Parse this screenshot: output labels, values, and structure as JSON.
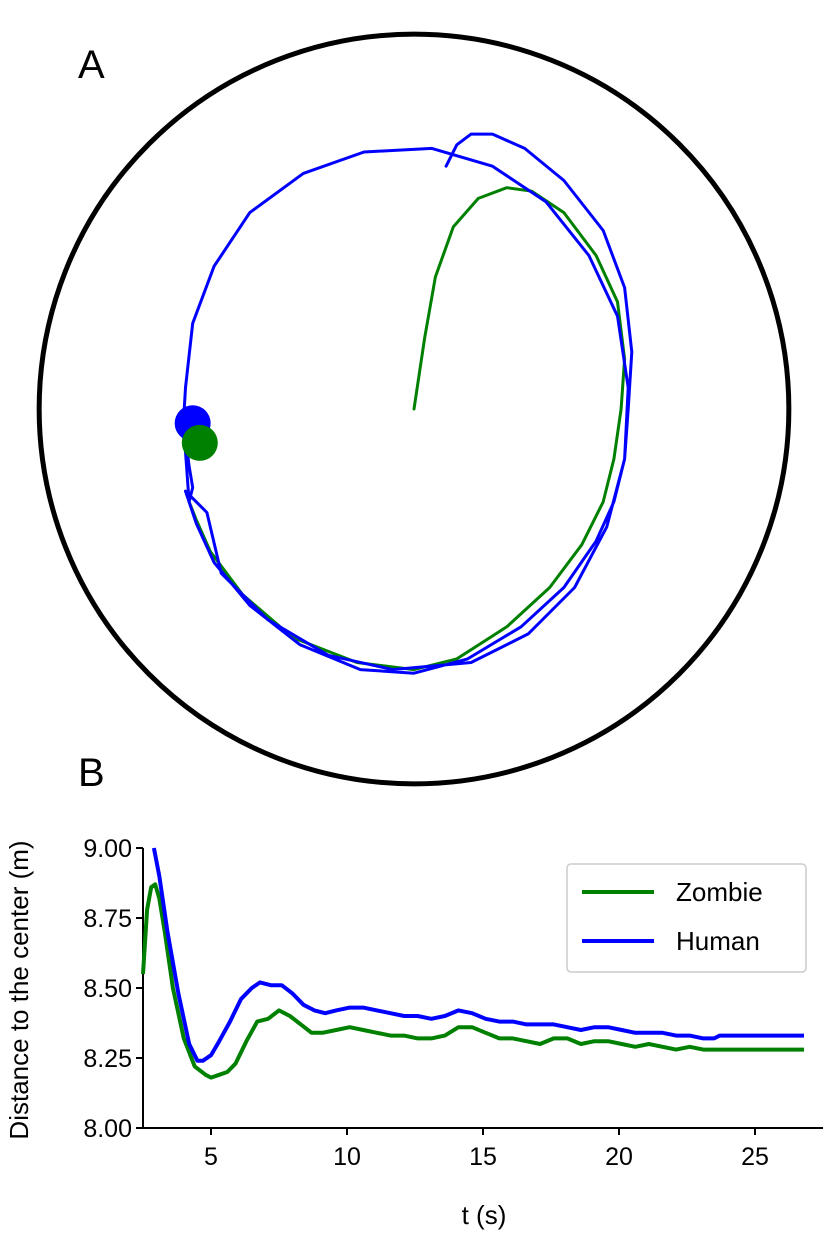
{
  "panels": {
    "a_label": "A",
    "b_label": "B"
  },
  "colors": {
    "zombie": "#008000",
    "human": "#0000ff",
    "arena": "#000000"
  },
  "chart_data": [
    {
      "type": "line",
      "panel": "A",
      "title": "",
      "note": "trajectories in a circular arena",
      "arena": {
        "shape": "circle",
        "center": [
          0,
          0
        ],
        "radius": 10.5
      },
      "series": [
        {
          "name": "Zombie",
          "points": [
            [
              0,
              0
            ],
            [
              0.3,
              2
            ],
            [
              0.6,
              3.7
            ],
            [
              1.1,
              5.1
            ],
            [
              1.8,
              5.9
            ],
            [
              2.6,
              6.2
            ],
            [
              3.3,
              6.1
            ],
            [
              4.2,
              5.5
            ],
            [
              5.1,
              4.3
            ],
            [
              5.7,
              3
            ],
            [
              5.9,
              1.4
            ],
            [
              5.8,
              0
            ],
            [
              5.6,
              -1.4
            ],
            [
              5.3,
              -2.6
            ],
            [
              4.7,
              -3.8
            ],
            [
              3.8,
              -5
            ],
            [
              2.6,
              -6.1
            ],
            [
              1.2,
              -7
            ],
            [
              0,
              -7.3
            ],
            [
              -1.6,
              -7.1
            ],
            [
              -3.4,
              -6.4
            ],
            [
              -4.8,
              -5.2
            ],
            [
              -5.7,
              -4
            ],
            [
              -6.1,
              -3.1
            ],
            [
              -6.3,
              -2.6
            ]
          ]
        },
        {
          "name": "Human",
          "points": [
            [
              0.9,
              6.8
            ],
            [
              1.2,
              7.4
            ],
            [
              1.6,
              7.7
            ],
            [
              2.2,
              7.7
            ],
            [
              3.1,
              7.3
            ],
            [
              4.2,
              6.4
            ],
            [
              5.3,
              5
            ],
            [
              5.9,
              3.4
            ],
            [
              6.1,
              1.6
            ],
            [
              6,
              0
            ],
            [
              5.9,
              -1.4
            ],
            [
              5.6,
              -2.6
            ],
            [
              5.1,
              -3.7
            ],
            [
              4.2,
              -5
            ],
            [
              3,
              -6.1
            ],
            [
              1.5,
              -7
            ],
            [
              0,
              -7.4
            ],
            [
              -1.5,
              -7.3
            ],
            [
              -3.2,
              -6.6
            ],
            [
              -4.6,
              -5.5
            ],
            [
              -5.6,
              -4.3
            ],
            [
              -6.1,
              -3.2
            ],
            [
              -6.4,
              -2.3
            ],
            [
              -5.8,
              -2.9
            ],
            [
              -5.4,
              -4.6
            ],
            [
              -4.1,
              -5.9
            ],
            [
              -2.4,
              -6.9
            ],
            [
              -0.6,
              -7.3
            ],
            [
              1.6,
              -7.1
            ],
            [
              3.2,
              -6.3
            ],
            [
              4.5,
              -5
            ],
            [
              5.4,
              -3.3
            ],
            [
              5.9,
              -1.4
            ],
            [
              6,
              0.6
            ],
            [
              5.7,
              2.6
            ],
            [
              4.9,
              4.3
            ],
            [
              3.7,
              5.8
            ],
            [
              2.2,
              6.8
            ],
            [
              0.5,
              7.3
            ],
            [
              -1.4,
              7.2
            ],
            [
              -3.1,
              6.6
            ],
            [
              -4.6,
              5.5
            ],
            [
              -5.6,
              4
            ],
            [
              -6.2,
              2.4
            ],
            [
              -6.4,
              0.6
            ],
            [
              -6.45,
              -0.25
            ],
            [
              -6.4,
              -0.8
            ],
            [
              -6.3,
              -1.6
            ],
            [
              -6.2,
              -2.2
            ],
            [
              -6.3,
              -2.6
            ],
            [
              -6.4,
              -1.2
            ],
            [
              -6.5,
              -0.4
            ]
          ]
        }
      ],
      "markers": [
        {
          "series": "Human",
          "position": [
            -6.2,
            -0.4
          ]
        },
        {
          "series": "Zombie",
          "position": [
            -6.0,
            -0.95
          ]
        }
      ]
    },
    {
      "type": "line",
      "panel": "B",
      "title": "",
      "xlabel": "t (s)",
      "ylabel": "Distance to the center (m)",
      "xlim": [
        2.5,
        27.5
      ],
      "ylim": [
        8.0,
        9.0
      ],
      "xticks": [
        5,
        10,
        15,
        20,
        25
      ],
      "xtick_labels": [
        "5",
        "10",
        "15",
        "20",
        "25"
      ],
      "yticks": [
        8.0,
        8.25,
        8.5,
        8.75,
        9.0
      ],
      "ytick_labels": [
        "8.00",
        "8.25",
        "8.50",
        "8.75",
        "9.00"
      ],
      "legend": {
        "position": "upper-right",
        "entries": [
          "Zombie",
          "Human"
        ]
      },
      "series": [
        {
          "name": "Zombie",
          "x": [
            2.5,
            2.65,
            2.8,
            2.95,
            3.1,
            3.3,
            3.6,
            4.0,
            4.4,
            4.8,
            5.0,
            5.3,
            5.6,
            5.9,
            6.3,
            6.7,
            7.1,
            7.5,
            7.9,
            8.3,
            8.7,
            9.1,
            9.6,
            10.1,
            10.6,
            11.1,
            11.6,
            12.1,
            12.6,
            13.1,
            13.6,
            14.1,
            14.6,
            15.1,
            15.6,
            16.1,
            16.6,
            17.1,
            17.6,
            18.1,
            18.6,
            19.1,
            19.6,
            20.1,
            20.6,
            21.1,
            21.6,
            22.1,
            22.6,
            23.1,
            23.6,
            24.5,
            25.5,
            26.5,
            26.8
          ],
          "y": [
            8.55,
            8.78,
            8.86,
            8.87,
            8.82,
            8.7,
            8.5,
            8.32,
            8.22,
            8.19,
            8.18,
            8.19,
            8.2,
            8.23,
            8.31,
            8.38,
            8.39,
            8.42,
            8.4,
            8.37,
            8.34,
            8.34,
            8.35,
            8.36,
            8.35,
            8.34,
            8.33,
            8.33,
            8.32,
            8.32,
            8.33,
            8.36,
            8.36,
            8.34,
            8.32,
            8.32,
            8.31,
            8.3,
            8.32,
            8.32,
            8.3,
            8.31,
            8.31,
            8.3,
            8.29,
            8.3,
            8.29,
            8.28,
            8.29,
            8.28,
            8.28,
            8.28,
            8.28,
            8.28,
            8.28
          ]
        },
        {
          "name": "Human",
          "x": [
            2.9,
            3.1,
            3.4,
            3.8,
            4.2,
            4.5,
            4.7,
            5.0,
            5.3,
            5.7,
            6.1,
            6.5,
            6.8,
            7.2,
            7.6,
            8.0,
            8.4,
            8.8,
            9.2,
            9.6,
            10.1,
            10.6,
            11.1,
            11.6,
            12.1,
            12.6,
            13.1,
            13.6,
            14.1,
            14.6,
            15.1,
            15.6,
            16.1,
            16.6,
            17.1,
            17.6,
            18.1,
            18.6,
            19.1,
            19.6,
            20.1,
            20.6,
            21.1,
            21.6,
            22.1,
            22.6,
            23.1,
            23.5,
            23.7,
            24.5,
            25.5,
            26.5,
            26.8
          ],
          "y": [
            9.0,
            8.9,
            8.7,
            8.48,
            8.3,
            8.24,
            8.24,
            8.26,
            8.31,
            8.38,
            8.46,
            8.5,
            8.52,
            8.51,
            8.51,
            8.48,
            8.44,
            8.42,
            8.41,
            8.42,
            8.43,
            8.43,
            8.42,
            8.41,
            8.4,
            8.4,
            8.39,
            8.4,
            8.42,
            8.41,
            8.39,
            8.38,
            8.38,
            8.37,
            8.37,
            8.37,
            8.36,
            8.35,
            8.36,
            8.36,
            8.35,
            8.34,
            8.34,
            8.34,
            8.33,
            8.33,
            8.32,
            8.32,
            8.33,
            8.33,
            8.33,
            8.33,
            8.33
          ]
        }
      ]
    }
  ]
}
